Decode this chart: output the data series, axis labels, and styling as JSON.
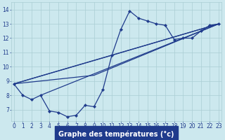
{
  "xlabel": "Graphe des températures (°c)",
  "x_hours": [
    0,
    1,
    2,
    3,
    4,
    5,
    6,
    7,
    8,
    9,
    10,
    11,
    12,
    13,
    14,
    15,
    16,
    17,
    18,
    19,
    20,
    21,
    22,
    23
  ],
  "main_curve": [
    8.8,
    8.0,
    7.7,
    8.0,
    6.9,
    6.8,
    6.5,
    6.6,
    7.3,
    7.2,
    8.4,
    10.8,
    12.6,
    13.9,
    13.4,
    13.2,
    13.0,
    12.9,
    11.9,
    12.0,
    12.0,
    12.5,
    12.9,
    13.0
  ],
  "straight_lines": [
    [
      [
        0,
        23
      ],
      [
        8.8,
        13.0
      ]
    ],
    [
      [
        3,
        23
      ],
      [
        8.0,
        13.0
      ]
    ],
    [
      [
        0,
        9,
        23
      ],
      [
        8.8,
        9.4,
        13.0
      ]
    ],
    [
      [
        0,
        11,
        23
      ],
      [
        8.8,
        10.8,
        13.0
      ]
    ]
  ],
  "ylim": [
    6.2,
    14.5
  ],
  "yticks": [
    7,
    8,
    9,
    10,
    11,
    12,
    13,
    14
  ],
  "bg_color": "#cce8ee",
  "grid_color": "#aacdd4",
  "line_color": "#1f3b8c",
  "label_bg_color": "#1f3b8c",
  "label_text_color": "#ffffff",
  "tick_color": "#1f3b8c",
  "marker": "D",
  "markersize": 2.2,
  "linewidth": 0.9,
  "tick_fontsize": 5.5,
  "label_fontsize": 7.0
}
